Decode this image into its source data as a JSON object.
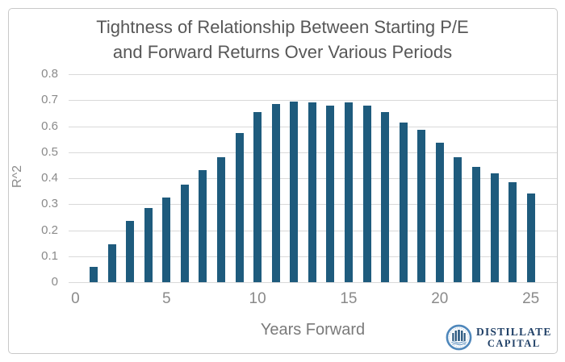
{
  "title_lines": [
    "Tightness of Relationship Between Starting P/E",
    "and Forward Returns Over Various Periods"
  ],
  "chart_data": {
    "type": "bar",
    "x": [
      1,
      2,
      3,
      4,
      5,
      6,
      7,
      8,
      9,
      10,
      11,
      12,
      13,
      14,
      15,
      16,
      17,
      18,
      19,
      20,
      21,
      22,
      23,
      24,
      25
    ],
    "values": [
      0.06,
      0.145,
      0.235,
      0.285,
      0.325,
      0.375,
      0.43,
      0.48,
      0.575,
      0.655,
      0.685,
      0.695,
      0.69,
      0.68,
      0.69,
      0.68,
      0.655,
      0.615,
      0.585,
      0.535,
      0.48,
      0.445,
      0.42,
      0.385,
      0.34
    ],
    "title": "Tightness of Relationship Between Starting P/E and Forward Returns Over Various Periods",
    "xlabel": "Years Forward",
    "ylabel": "R^2",
    "ylim": [
      0,
      0.8
    ],
    "ytick_labels": [
      "0.8",
      "0.7",
      "0.6",
      "0.5",
      "0.4",
      "0.3",
      "0.2",
      "0.1",
      "0"
    ],
    "ytick_values": [
      0.8,
      0.7,
      0.6,
      0.5,
      0.4,
      0.3,
      0.2,
      0.1,
      0
    ],
    "xtick_values": [
      0,
      5,
      10,
      15,
      20,
      25
    ],
    "xtick_labels": [
      "0",
      "5",
      "10",
      "15",
      "20",
      "25"
    ],
    "grid": "horizontal",
    "legend": "none",
    "bar_color": "#1e5b7d",
    "gridline_color": "#d9d9d9"
  },
  "branding": {
    "name1": "DISTILLATE",
    "name2": "CAPITAL",
    "logo_icon": "distillate-capital-seal",
    "ring_color": "#4e87bb",
    "column_color": "#27567e",
    "text_color": "#1f3f66"
  }
}
